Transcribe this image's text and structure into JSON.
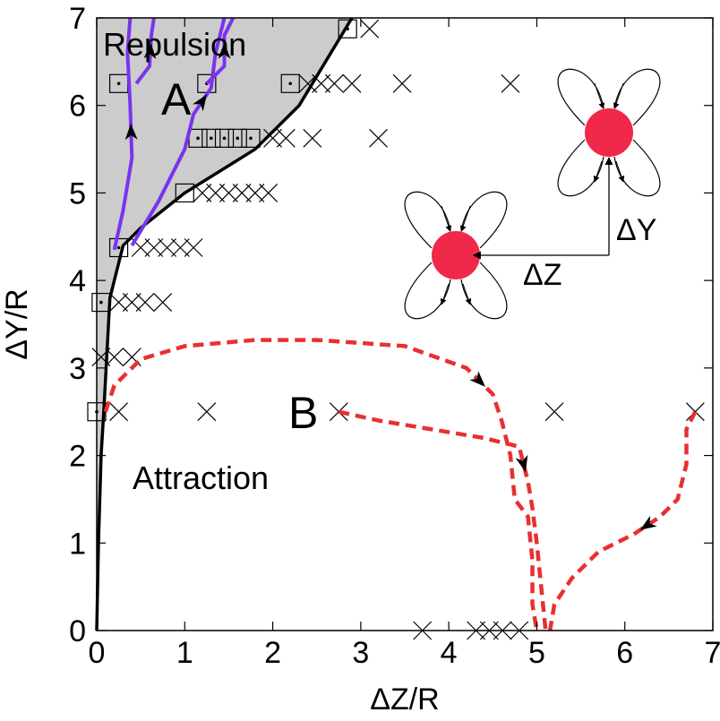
{
  "chart_data": {
    "type": "scatter",
    "x_label": "ΔZ/R",
    "y_label": "ΔY/R",
    "xlim": [
      0,
      7
    ],
    "ylim": [
      0,
      7
    ],
    "xticks": [
      0,
      1,
      2,
      3,
      4,
      5,
      6,
      7
    ],
    "yticks": [
      0,
      1,
      2,
      3,
      4,
      5,
      6,
      7
    ],
    "annotations": [
      "Repulsion",
      "Attraction",
      "A",
      "B",
      "ΔY",
      "ΔZ"
    ],
    "series": [
      {
        "type": "line",
        "color": "#000000",
        "width": 3.5,
        "fill_left": "#cccccc",
        "x": [
          0,
          0.02,
          0.05,
          0.08,
          0.15,
          0.3,
          0.5,
          1.0,
          1.8,
          2.3,
          2.9
        ],
        "values": [
          0,
          1,
          2,
          2.5,
          3.8,
          4.4,
          4.6,
          5.0,
          5.5,
          6.0,
          7.0
        ]
      },
      {
        "type": "scatter",
        "marker": "x",
        "color": "#000000",
        "x": [
          3.7,
          4.31,
          4.46,
          4.61,
          4.8,
          0.25,
          1.25,
          2.75,
          5.2,
          6.8,
          0.05,
          0.2,
          0.4,
          0.25,
          0.4,
          0.55,
          0.75,
          0.5,
          0.65,
          0.8,
          0.95,
          1.1,
          1.2,
          1.35,
          1.5,
          1.65,
          1.8,
          1.95,
          2.0,
          2.15,
          2.45,
          3.2,
          2.4,
          2.55,
          2.7,
          2.9,
          3.47,
          4.7,
          3.1
        ],
        "values": [
          0,
          0,
          0,
          0,
          0,
          2.5,
          2.5,
          2.5,
          2.5,
          2.5,
          3.125,
          3.125,
          3.125,
          3.75,
          3.75,
          3.75,
          3.75,
          4.375,
          4.375,
          4.375,
          4.375,
          4.375,
          5.0,
          5.0,
          5.0,
          5.0,
          5.0,
          5.0,
          5.625,
          5.625,
          5.625,
          5.625,
          6.25,
          6.25,
          6.25,
          6.25,
          6.25,
          6.25,
          6.875
        ]
      },
      {
        "type": "scatter",
        "marker": "square-dot",
        "color": "#000000",
        "x": [
          0.0,
          0.05,
          0.25,
          1.0,
          1.15,
          1.3,
          1.45,
          1.6,
          1.75,
          0.25,
          1.25,
          2.2,
          2.85
        ],
        "values": [
          2.5,
          3.75,
          4.375,
          5.0,
          5.625,
          5.625,
          5.625,
          5.625,
          5.625,
          6.25,
          6.25,
          6.25,
          6.875
        ]
      },
      {
        "type": "line",
        "color": "#7a33ee",
        "width": 4,
        "arrow": true,
        "x": [
          0.2,
          0.3,
          0.4,
          0.38,
          0.35,
          0.38
        ],
        "values": [
          4.35,
          4.8,
          5.4,
          6.0,
          6.6,
          7.0
        ]
      },
      {
        "type": "line",
        "color": "#7a33ee",
        "width": 4,
        "arrow": true,
        "x": [
          0.45,
          0.6,
          0.62,
          0.65
        ],
        "values": [
          6.25,
          6.45,
          6.8,
          7.0
        ]
      },
      {
        "type": "line",
        "color": "#7a33ee",
        "width": 4,
        "arrow": true,
        "x": [
          0.4,
          0.7,
          1.0,
          1.1,
          1.3,
          1.35,
          1.45
        ],
        "values": [
          4.4,
          4.9,
          5.5,
          5.9,
          6.2,
          6.6,
          7.0
        ]
      },
      {
        "type": "line",
        "color": "#7a33ee",
        "width": 4,
        "arrow": true,
        "x": [
          1.25,
          1.45,
          1.45,
          1.55
        ],
        "values": [
          6.25,
          6.45,
          6.8,
          7.0
        ]
      },
      {
        "type": "line",
        "color": "#e83030",
        "width": 4.5,
        "dashed": true,
        "arrow": true,
        "x": [
          0.1,
          0.2,
          0.5,
          1.0,
          1.8,
          2.5,
          3.5,
          4.2,
          4.5,
          4.6,
          4.7,
          4.75,
          4.9,
          4.95,
          4.95,
          5.0
        ],
        "values": [
          2.5,
          2.8,
          3.1,
          3.25,
          3.32,
          3.32,
          3.25,
          3.0,
          2.7,
          2.4,
          2.0,
          1.5,
          1.3,
          0.8,
          0.3,
          0.0
        ]
      },
      {
        "type": "line",
        "color": "#e83030",
        "width": 4.5,
        "dashed": true,
        "arrow": true,
        "x": [
          2.75,
          3.2,
          3.8,
          4.4,
          4.8,
          4.9,
          4.95,
          5.0,
          5.05,
          5.1
        ],
        "values": [
          2.5,
          2.4,
          2.3,
          2.2,
          2.1,
          1.7,
          1.4,
          1.0,
          0.5,
          0.0
        ]
      },
      {
        "type": "line",
        "color": "#e83030",
        "width": 4.5,
        "dashed": true,
        "arrow": true,
        "x": [
          6.8,
          6.7,
          6.7,
          6.6,
          6.4,
          6.1,
          5.7,
          5.4,
          5.2,
          5.15
        ],
        "values": [
          2.5,
          2.3,
          1.9,
          1.5,
          1.3,
          1.1,
          0.9,
          0.6,
          0.3,
          0.0
        ]
      }
    ]
  }
}
